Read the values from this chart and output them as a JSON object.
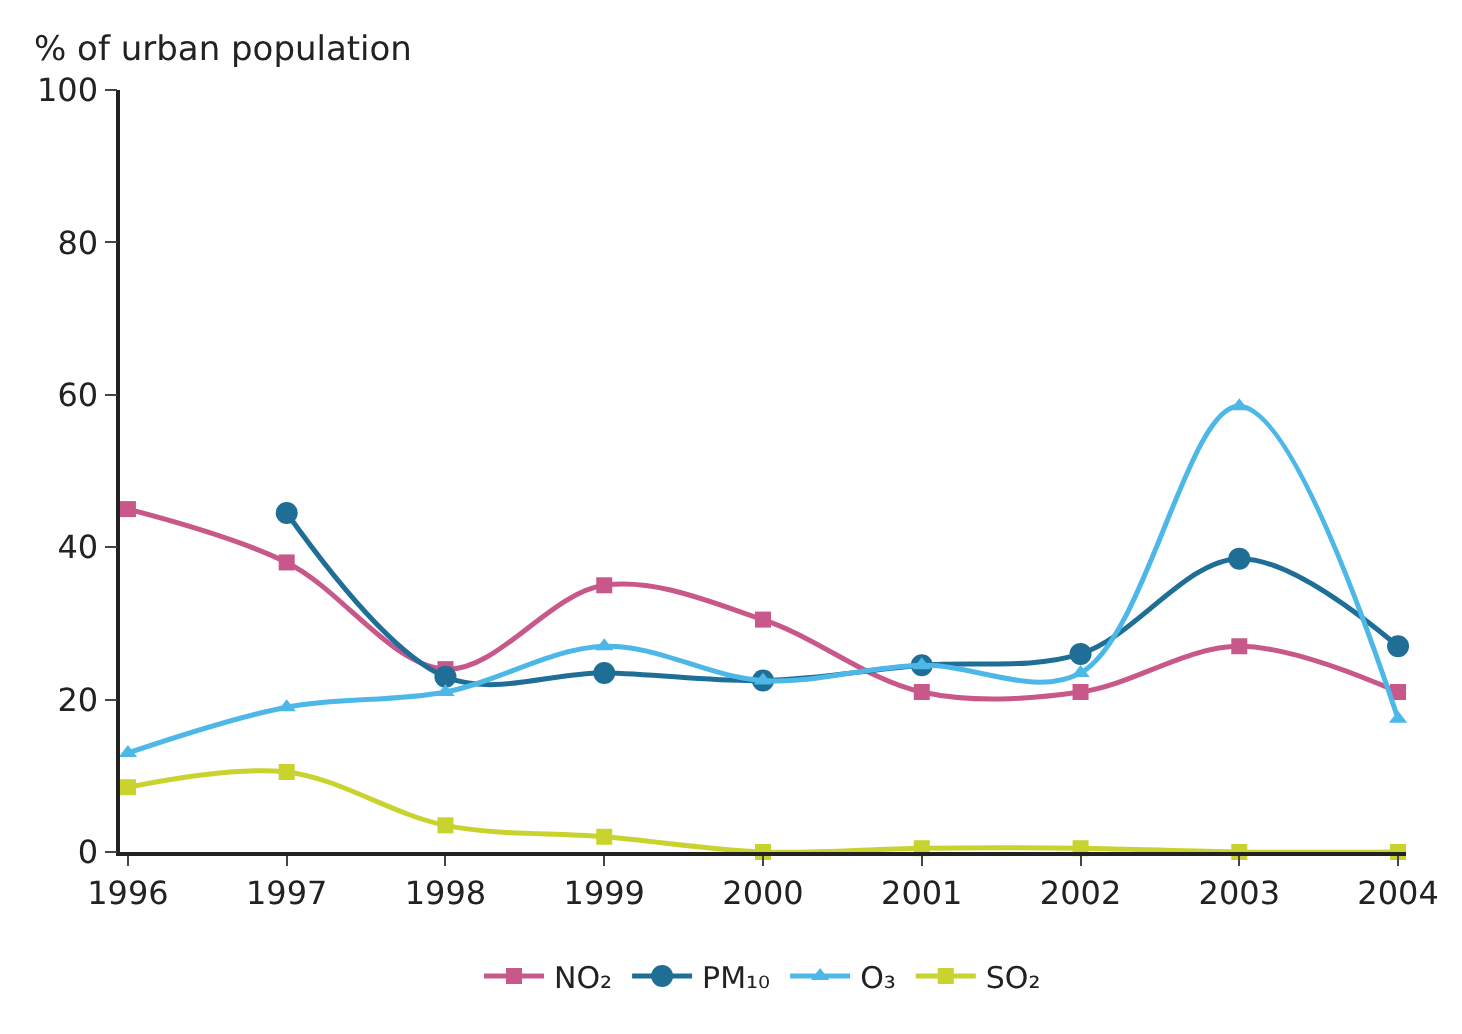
{
  "chart_data": {
    "type": "line",
    "ylabel": "% of urban population",
    "categories": [
      "1996",
      "1997",
      "1998",
      "1999",
      "2000",
      "2001",
      "2002",
      "2003",
      "2004"
    ],
    "series": [
      {
        "name": "NO₂",
        "color": "#c8588a",
        "marker": "square",
        "values": [
          45,
          38,
          24,
          35,
          30.5,
          21,
          21,
          27,
          21
        ]
      },
      {
        "name": "PM₁₀",
        "color": "#1f6e96",
        "marker": "circle",
        "values": [
          null,
          44.5,
          23,
          23.5,
          22.5,
          24.5,
          26,
          38.5,
          27
        ]
      },
      {
        "name": "O₃",
        "color": "#4db8e8",
        "marker": "triangle",
        "values": [
          13,
          19,
          21,
          27,
          22.5,
          24.5,
          23.5,
          58.5,
          17.5
        ]
      },
      {
        "name": "SO₂",
        "color": "#c8d32e",
        "marker": "square",
        "values": [
          8.5,
          10.5,
          3.5,
          2,
          0,
          0.5,
          0.5,
          0,
          0
        ]
      }
    ],
    "ylim": [
      0,
      100
    ],
    "yticks": [
      0,
      20,
      40,
      60,
      80,
      100
    ],
    "legend": "bottom"
  }
}
